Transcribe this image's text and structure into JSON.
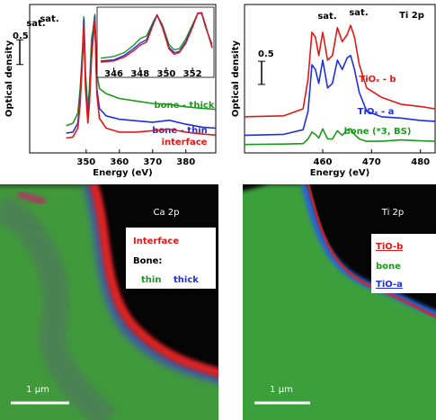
{
  "chart_data": [
    {
      "type": "line",
      "xlabel": "Energy (eV)",
      "ylabel": "Optical density",
      "x": [
        344,
        346,
        347.5,
        348.2,
        349,
        349.3,
        349.8,
        350.5,
        351,
        351.6,
        352.1,
        352.6,
        353.2,
        354,
        356,
        360,
        365,
        370,
        375,
        380,
        385,
        389
      ],
      "xlim": [
        333,
        389
      ],
      "xticks": [
        350,
        360,
        370,
        380
      ],
      "ylim": [
        0,
        3
      ],
      "scale_bar": 0.5,
      "annotations": [
        "sat.",
        "sat."
      ],
      "series": [
        {
          "name": "bone - thick",
          "color": "#1a9a1a",
          "values": [
            0.55,
            0.6,
            0.8,
            1.3,
            2.2,
            2.75,
            1.6,
            0.9,
            1.3,
            2.3,
            2.5,
            2.8,
            1.6,
            1.3,
            1.2,
            1.1,
            1.05,
            1.0,
            0.98,
            0.93,
            0.9,
            0.88
          ]
        },
        {
          "name": "bone - thin",
          "color": "#1f2fe0",
          "values": [
            0.4,
            0.42,
            0.6,
            1.1,
            2.1,
            2.7,
            1.4,
            0.7,
            1.1,
            2.0,
            2.4,
            2.75,
            1.3,
            0.9,
            0.75,
            0.68,
            0.65,
            0.62,
            0.66,
            0.58,
            0.52,
            0.5
          ]
        },
        {
          "name": "interface",
          "color": "#e01818",
          "values": [
            0.3,
            0.32,
            0.5,
            1.0,
            2.0,
            2.6,
            1.3,
            0.6,
            1.0,
            1.9,
            2.3,
            2.7,
            1.2,
            0.7,
            0.5,
            0.42,
            0.42,
            0.45,
            0.48,
            0.42,
            0.38,
            0.36
          ]
        }
      ],
      "inset": {
        "type": "line",
        "x": [
          345,
          346,
          346.8,
          347.5,
          348,
          348.5,
          349,
          349.3,
          349.7,
          350.2,
          350.6,
          351,
          351.5,
          352,
          352.4,
          352.7,
          353,
          353.5
        ],
        "xlim": [
          345,
          353.5
        ],
        "xticks": [
          346,
          348,
          350,
          352
        ],
        "ylim": [
          0,
          1
        ],
        "series": [
          {
            "color": "#1a9a1a",
            "values": [
              0.15,
              0.18,
              0.25,
              0.38,
              0.5,
              0.55,
              0.8,
              0.92,
              0.75,
              0.4,
              0.3,
              0.32,
              0.5,
              0.75,
              0.95,
              0.95,
              0.7,
              0.4
            ]
          },
          {
            "color": "#1f2fe0",
            "values": [
              0.1,
              0.12,
              0.2,
              0.32,
              0.42,
              0.48,
              0.78,
              0.93,
              0.72,
              0.35,
              0.25,
              0.27,
              0.45,
              0.72,
              0.96,
              0.96,
              0.72,
              0.35
            ]
          },
          {
            "color": "#e01818",
            "values": [
              0.08,
              0.1,
              0.17,
              0.28,
              0.38,
              0.44,
              0.75,
              0.92,
              0.7,
              0.32,
              0.22,
              0.25,
              0.42,
              0.7,
              0.95,
              0.97,
              0.74,
              0.33
            ]
          }
        ]
      }
    },
    {
      "type": "line",
      "title": "Ti 2p",
      "xlabel": "Energy (eV)",
      "ylabel": "Optical density",
      "x": [
        444,
        452,
        456,
        457,
        457.8,
        458.5,
        459.2,
        460,
        461,
        462,
        463,
        464,
        465,
        465.7,
        466.5,
        467.5,
        469,
        472,
        476,
        480,
        483
      ],
      "xlim": [
        444,
        483
      ],
      "xticks": [
        460,
        470,
        480
      ],
      "ylim": [
        0,
        3.2
      ],
      "scale_bar": 0.5,
      "annotations": [
        "sat.",
        "sat."
      ],
      "series": [
        {
          "name": "TiOₓ - b",
          "color": "#e01818",
          "values": [
            0.78,
            0.8,
            0.95,
            1.6,
            2.6,
            2.5,
            2.1,
            2.6,
            2.0,
            2.1,
            2.7,
            2.4,
            2.55,
            2.75,
            2.5,
            1.9,
            1.4,
            1.2,
            1.05,
            1.0,
            0.95
          ]
        },
        {
          "name": "TiOₓ - a",
          "color": "#1f2fe0",
          "values": [
            0.38,
            0.4,
            0.5,
            0.9,
            1.9,
            1.8,
            1.5,
            2.0,
            1.4,
            1.5,
            2.0,
            1.8,
            2.05,
            2.1,
            1.8,
            1.3,
            0.9,
            0.78,
            0.75,
            0.7,
            0.68
          ]
        },
        {
          "name": "bone  (*3, BS)",
          "color": "#1a9a1a",
          "values": [
            0.18,
            0.19,
            0.2,
            0.3,
            0.45,
            0.4,
            0.32,
            0.52,
            0.3,
            0.3,
            0.48,
            0.38,
            0.5,
            0.52,
            0.4,
            0.3,
            0.25,
            0.25,
            0.28,
            0.26,
            0.25
          ]
        }
      ]
    }
  ],
  "images": [
    {
      "title": "Ca 2p",
      "labels": [
        "Interface",
        "Bone:",
        "thin",
        "thick"
      ],
      "scale_label": "1 μm"
    },
    {
      "title": "Ti 2p",
      "labels": [
        "TiO-b",
        "bone",
        "TiO-a"
      ],
      "scale_label": "1 μm"
    }
  ]
}
